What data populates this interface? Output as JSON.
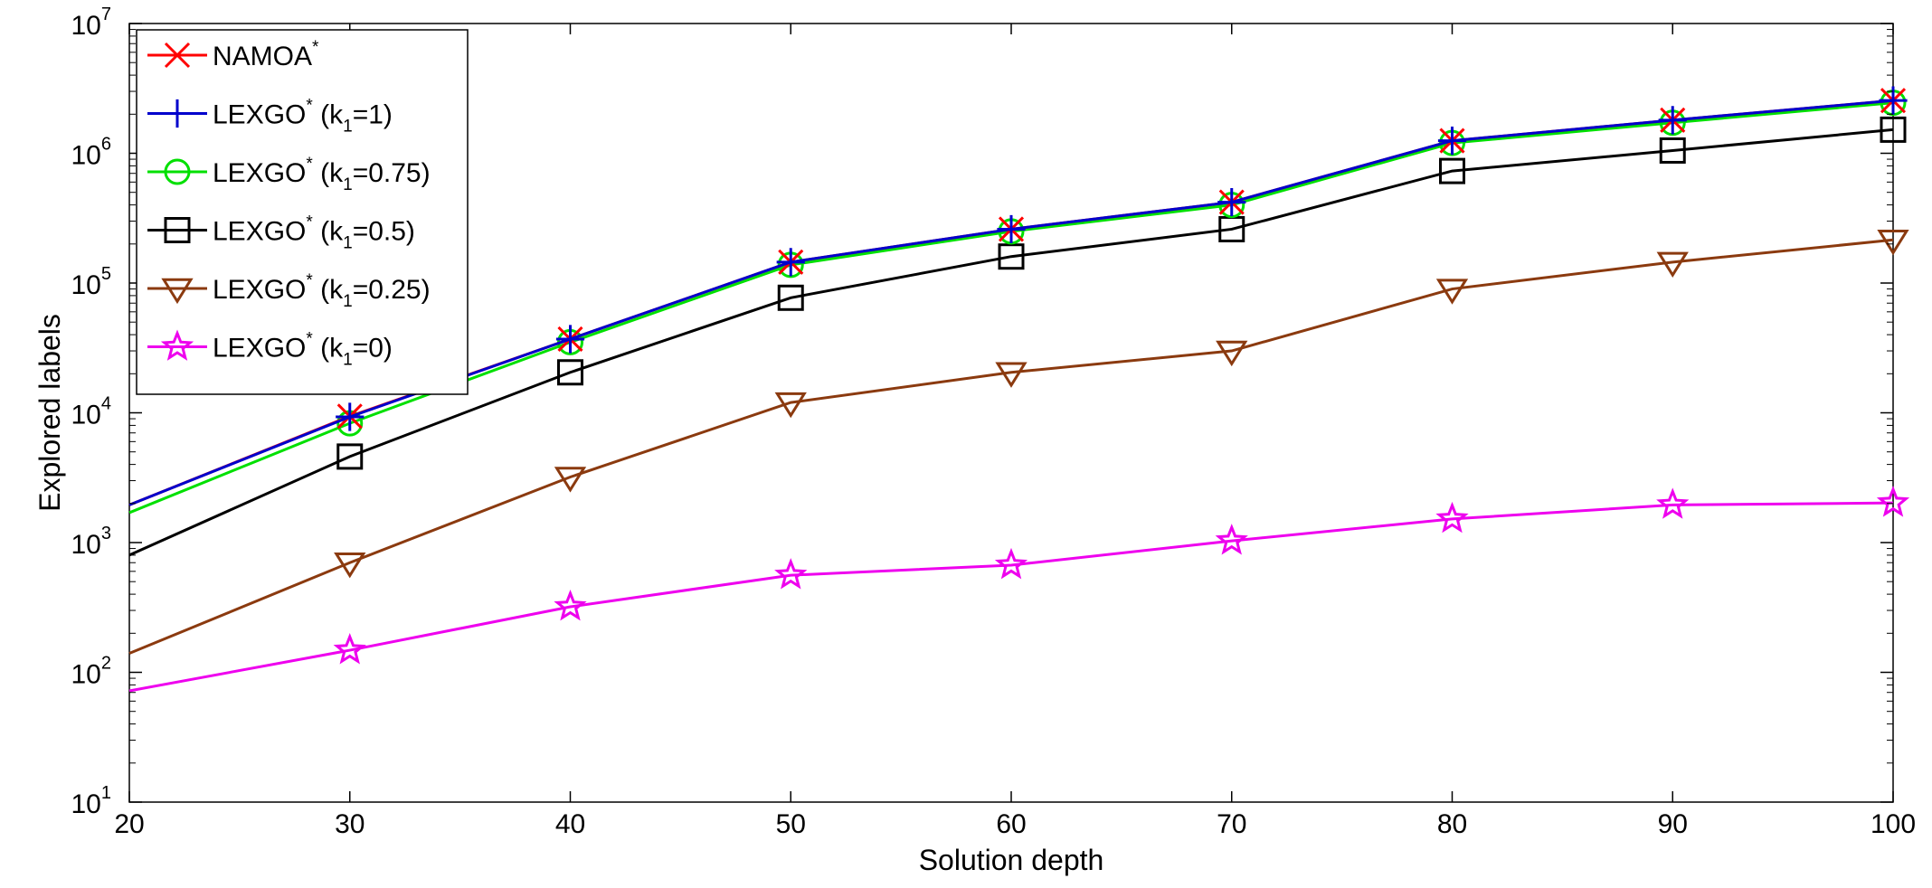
{
  "chart_data": {
    "type": "line",
    "title": "",
    "xlabel": "Solution depth",
    "ylabel": "Explored labels",
    "x": [
      20,
      30,
      40,
      50,
      60,
      70,
      80,
      90,
      100
    ],
    "xlim": [
      20,
      100
    ],
    "ylim": [
      10,
      10000000
    ],
    "yscale": "log",
    "x_ticks": [
      "20",
      "30",
      "40",
      "50",
      "60",
      "70",
      "80",
      "90",
      "100"
    ],
    "y_ticks": [
      {
        "base": "10",
        "exp": "1"
      },
      {
        "base": "10",
        "exp": "2"
      },
      {
        "base": "10",
        "exp": "3"
      },
      {
        "base": "10",
        "exp": "4"
      },
      {
        "base": "10",
        "exp": "5"
      },
      {
        "base": "10",
        "exp": "6"
      },
      {
        "base": "10",
        "exp": "7"
      }
    ],
    "grid": false,
    "legend_position": "top-left",
    "series": [
      {
        "name": "NAMOA*",
        "label_main": "NAMOA",
        "label_sup": "*",
        "label_rest": "",
        "label_sub": "",
        "label_tail": "",
        "marker": "x",
        "color": "#ff0000",
        "values": [
          1950,
          9400,
          37000,
          145000,
          260000,
          420000,
          1250000,
          1800000,
          2550000
        ]
      },
      {
        "name": "LEXGO* (k1=1)",
        "label_main": "LEXGO",
        "label_sup": "*",
        "label_rest": " (k",
        "label_sub": "1",
        "label_tail": "=1)",
        "marker": "plus",
        "color": "#0000cc",
        "values": [
          1950,
          9300,
          37000,
          145000,
          260000,
          420000,
          1250000,
          1800000,
          2550000
        ]
      },
      {
        "name": "LEXGO* (k1=0.75)",
        "label_main": "LEXGO",
        "label_sup": "*",
        "label_rest": " (k",
        "label_sub": "1",
        "label_tail": "=0.75)",
        "marker": "circle",
        "color": "#00e000",
        "values": [
          1700,
          8300,
          35000,
          138000,
          250000,
          400000,
          1200000,
          1720000,
          2450000
        ]
      },
      {
        "name": "LEXGO* (k1=0.5)",
        "label_main": "LEXGO",
        "label_sup": "*",
        "label_rest": " (k",
        "label_sub": "1",
        "label_tail": "=0.5)",
        "marker": "square",
        "color": "#000000",
        "values": [
          800,
          4600,
          20500,
          77000,
          160000,
          260000,
          730000,
          1050000,
          1520000
        ]
      },
      {
        "name": "LEXGO* (k1=0.25)",
        "label_main": "LEXGO",
        "label_sup": "*",
        "label_rest": " (k",
        "label_sub": "1",
        "label_tail": "=0.25)",
        "marker": "triangle-down",
        "color": "#8b3a0f",
        "values": [
          140,
          700,
          3200,
          12000,
          20500,
          30000,
          90000,
          145000,
          215000
        ]
      },
      {
        "name": "LEXGO* (k1=0)",
        "label_main": "LEXGO",
        "label_sup": "*",
        "label_rest": " (k",
        "label_sub": "1",
        "label_tail": "=0)",
        "marker": "star",
        "color": "#ee00ee",
        "values": [
          72,
          148,
          320,
          560,
          670,
          1030,
          1520,
          1950,
          2020
        ]
      }
    ]
  }
}
